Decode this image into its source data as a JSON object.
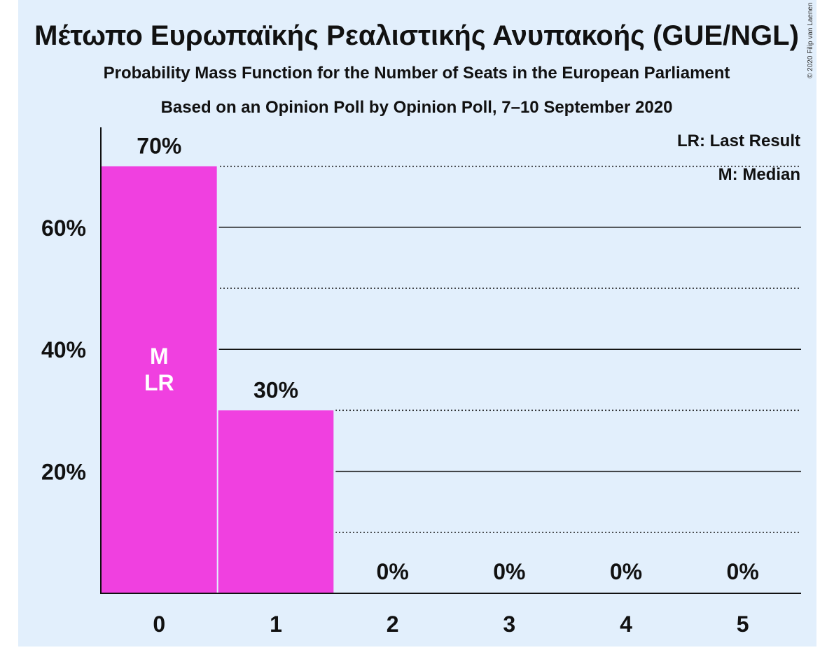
{
  "chart_data": {
    "type": "bar",
    "title": "Μέτωπο Ευρωπαϊκής Ρεαλιστικής Ανυπακοής (GUE/NGL)",
    "subtitle": "Probability Mass Function for the Number of Seats in the European Parliament",
    "subtitle2": "Based on an Opinion Poll by Opinion Poll, 7–10 September 2020",
    "copyright": "© 2020 Filip van Laenen",
    "categories": [
      "0",
      "1",
      "2",
      "3",
      "4",
      "5"
    ],
    "values": [
      70,
      30,
      0,
      0,
      0,
      0
    ],
    "value_labels": [
      "70%",
      "30%",
      "0%",
      "0%",
      "0%",
      "0%"
    ],
    "ylim": [
      0,
      76
    ],
    "y_ticks": [
      20,
      40,
      60
    ],
    "y_tick_labels": [
      "20%",
      "40%",
      "60%"
    ],
    "y_dotted_lines": [
      10,
      30,
      50,
      70
    ],
    "median_index": 0,
    "last_result_index": 0,
    "median_marker": "M",
    "last_result_marker": "LR",
    "legend": [
      "LR: Last Result",
      "M: Median"
    ],
    "legend_position": "top-right",
    "colors": {
      "bar": "#f040e0",
      "plot_background": "#e2effc",
      "text": "#111111"
    }
  }
}
